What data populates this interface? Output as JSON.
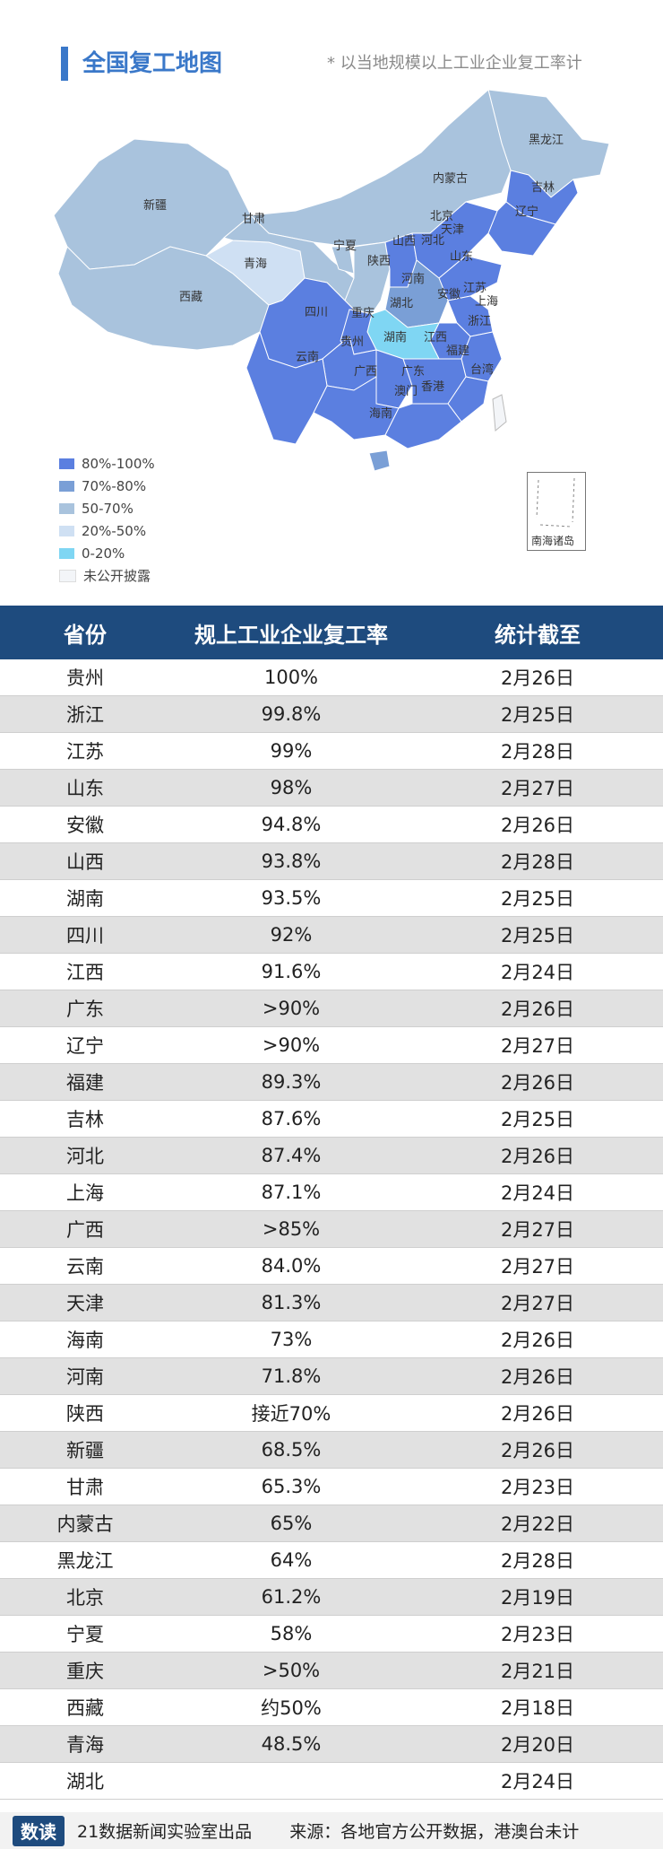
{
  "header": {
    "title": "全国复工地图",
    "note": "* 以当地规模以上工业企业复工率计"
  },
  "map": {
    "labels": [
      "黑龙江",
      "吉林",
      "辽宁",
      "内蒙古",
      "北京",
      "天津",
      "河北",
      "山西",
      "山东",
      "新疆",
      "甘肃",
      "宁夏",
      "青海",
      "陕西",
      "河南",
      "江苏",
      "上海",
      "安徽",
      "湖北",
      "西藏",
      "四川",
      "重庆",
      "浙江",
      "湖南",
      "江西",
      "贵州",
      "福建",
      "云南",
      "广西",
      "广东",
      "台湾",
      "澳门",
      "香港",
      "海南"
    ],
    "islands_label": "南海诸岛",
    "colors": {
      "c80_100": "#5b7fe0",
      "c70_80": "#7a9fd6",
      "c50_70": "#a9c3dd",
      "c20_50": "#cfe0f3",
      "c0_20": "#7fd6f3",
      "undisclosed": "#f3f5f8"
    }
  },
  "legend": [
    {
      "label": "80%-100%",
      "color": "#5b7fe0"
    },
    {
      "label": "70%-80%",
      "color": "#7a9fd6"
    },
    {
      "label": "50-70%",
      "color": "#a9c3dd"
    },
    {
      "label": "20%-50%",
      "color": "#cfe0f3"
    },
    {
      "label": "0-20%",
      "color": "#7fd6f3"
    },
    {
      "label": "未公开披露",
      "color": "#f3f5f8"
    }
  ],
  "table": {
    "headers": [
      "省份",
      "规上工业企业复工率",
      "统计截至"
    ],
    "rows": [
      [
        "贵州",
        "100%",
        "2月26日"
      ],
      [
        "浙江",
        "99.8%",
        "2月25日"
      ],
      [
        "江苏",
        "99%",
        "2月28日"
      ],
      [
        "山东",
        "98%",
        "2月27日"
      ],
      [
        "安徽",
        "94.8%",
        "2月26日"
      ],
      [
        "山西",
        "93.8%",
        "2月28日"
      ],
      [
        "湖南",
        "93.5%",
        "2月25日"
      ],
      [
        "四川",
        "92%",
        "2月25日"
      ],
      [
        "江西",
        "91.6%",
        "2月24日"
      ],
      [
        "广东",
        ">90%",
        "2月26日"
      ],
      [
        "辽宁",
        ">90%",
        "2月27日"
      ],
      [
        "福建",
        "89.3%",
        "2月26日"
      ],
      [
        "吉林",
        "87.6%",
        "2月25日"
      ],
      [
        "河北",
        "87.4%",
        "2月26日"
      ],
      [
        "上海",
        "87.1%",
        "2月24日"
      ],
      [
        "广西",
        ">85%",
        "2月27日"
      ],
      [
        "云南",
        "84.0%",
        "2月27日"
      ],
      [
        "天津",
        "81.3%",
        "2月27日"
      ],
      [
        "海南",
        "73%",
        "2月26日"
      ],
      [
        "河南",
        "71.8%",
        "2月26日"
      ],
      [
        "陕西",
        "接近70%",
        "2月26日"
      ],
      [
        "新疆",
        "68.5%",
        "2月26日"
      ],
      [
        "甘肃",
        "65.3%",
        "2月23日"
      ],
      [
        "内蒙古",
        "65%",
        "2月22日"
      ],
      [
        "黑龙江",
        "64%",
        "2月28日"
      ],
      [
        "北京",
        "61.2%",
        "2月19日"
      ],
      [
        "宁夏",
        "58%",
        "2月23日"
      ],
      [
        "重庆",
        ">50%",
        "2月21日"
      ],
      [
        "西藏",
        "约50%",
        "2月18日"
      ],
      [
        "青海",
        "48.5%",
        "2月20日"
      ],
      [
        "湖北",
        "",
        "2月24日"
      ]
    ]
  },
  "footer": {
    "logo_text": "数读",
    "left": "21数据新闻实验室出品",
    "right": "来源：各地官方公开数据，港澳台未计"
  }
}
